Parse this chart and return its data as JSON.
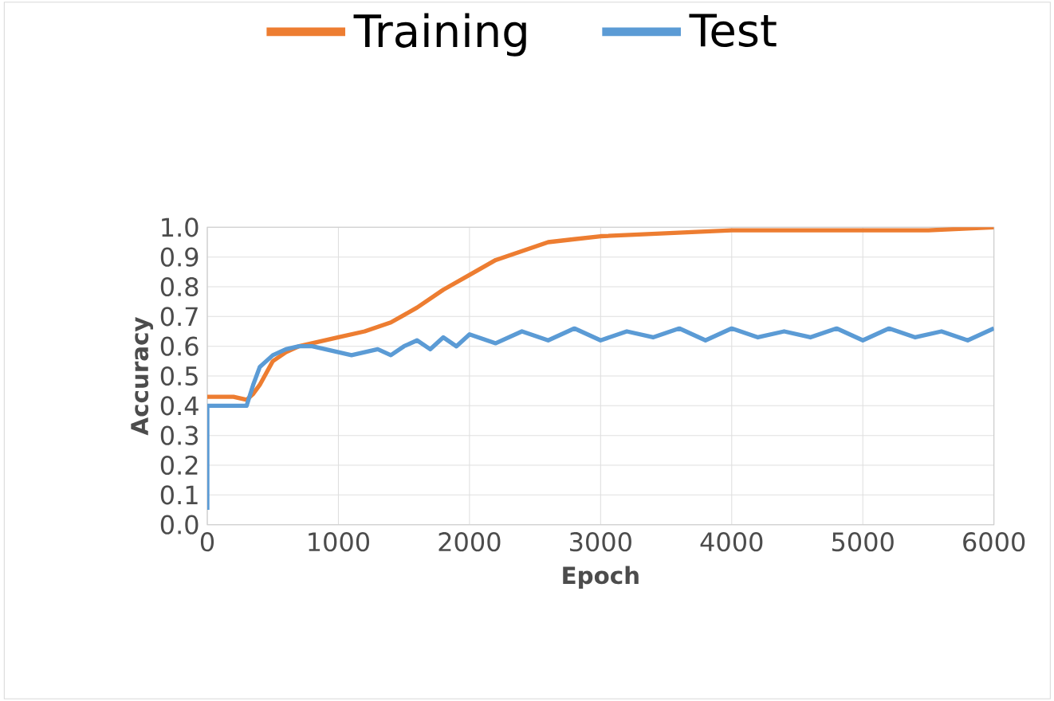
{
  "chart_data": {
    "type": "line",
    "xlabel": "Epoch",
    "ylabel": "Accuracy",
    "xlim": [
      0,
      6000
    ],
    "ylim": [
      0,
      1
    ],
    "xticks": [
      0,
      1000,
      2000,
      3000,
      4000,
      5000,
      6000
    ],
    "yticks": [
      {
        "value": 0,
        "label": "0.0"
      },
      {
        "value": 0.1,
        "label": "0.1"
      },
      {
        "value": 0.2,
        "label": "0.2"
      },
      {
        "value": 0.3,
        "label": "0.3"
      },
      {
        "value": 0.4,
        "label": "0.4"
      },
      {
        "value": 0.5,
        "label": "0.5"
      },
      {
        "value": 0.6,
        "label": "0.6"
      },
      {
        "value": 0.7,
        "label": "0.7"
      },
      {
        "value": 0.8,
        "label": "0.8"
      },
      {
        "value": 0.9,
        "label": "0.9"
      },
      {
        "value": 1.0,
        "label": "1.0"
      }
    ],
    "grid": true,
    "legend": "top",
    "marker": "none",
    "line_style": "solid",
    "series": [
      {
        "name": "Training",
        "color": "#ed7d31",
        "x": [
          0,
          100,
          200,
          300,
          350,
          400,
          500,
          600,
          700,
          800,
          1000,
          1200,
          1400,
          1600,
          1800,
          2000,
          2200,
          2400,
          2600,
          2800,
          3000,
          3500,
          4000,
          4500,
          5000,
          5500,
          6000
        ],
        "values": [
          0.43,
          0.43,
          0.43,
          0.42,
          0.44,
          0.47,
          0.55,
          0.58,
          0.6,
          0.61,
          0.63,
          0.65,
          0.68,
          0.73,
          0.79,
          0.84,
          0.89,
          0.92,
          0.95,
          0.96,
          0.97,
          0.98,
          0.99,
          0.99,
          0.99,
          0.99,
          1.0
        ]
      },
      {
        "name": "Test",
        "color": "#5b9bd5",
        "x": [
          0,
          0,
          100,
          300,
          350,
          400,
          500,
          600,
          700,
          800,
          900,
          1000,
          1100,
          1200,
          1300,
          1400,
          1500,
          1600,
          1700,
          1800,
          1900,
          2000,
          2200,
          2400,
          2600,
          2800,
          3000,
          3200,
          3400,
          3600,
          3800,
          4000,
          4200,
          4400,
          4600,
          4800,
          5000,
          5200,
          5400,
          5600,
          5800,
          6000
        ],
        "values": [
          0.05,
          0.4,
          0.4,
          0.4,
          0.47,
          0.53,
          0.57,
          0.59,
          0.6,
          0.6,
          0.59,
          0.58,
          0.57,
          0.58,
          0.59,
          0.57,
          0.6,
          0.62,
          0.59,
          0.63,
          0.6,
          0.64,
          0.61,
          0.65,
          0.62,
          0.66,
          0.62,
          0.65,
          0.63,
          0.66,
          0.62,
          0.66,
          0.63,
          0.65,
          0.63,
          0.66,
          0.62,
          0.66,
          0.63,
          0.65,
          0.62,
          0.66
        ]
      }
    ]
  }
}
